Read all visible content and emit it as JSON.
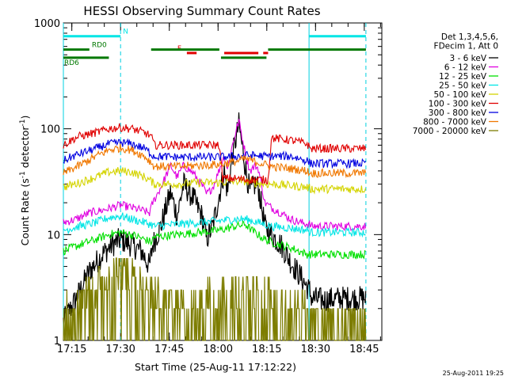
{
  "chart_data": {
    "type": "line",
    "title": "HESSI Observing Summary Count Rates",
    "xlabel": "Start Time (25-Aug-11 17:12:22)",
    "ylabel_main": "Count Rate (s",
    "ylabel_sup1": "-1",
    "ylabel_mid": " detector",
    "ylabel_sup2": "-1",
    "ylabel_end": ")",
    "y_scale": "log",
    "xlim_minutes": [
      0,
      98
    ],
    "ylim": [
      1,
      1000
    ],
    "x_ticks": [
      {
        "t": 2.6,
        "label": "17:15"
      },
      {
        "t": 17.6,
        "label": "17:30"
      },
      {
        "t": 32.6,
        "label": "17:45"
      },
      {
        "t": 47.6,
        "label": "18:00"
      },
      {
        "t": 62.6,
        "label": "18:15"
      },
      {
        "t": 77.6,
        "label": "18:30"
      },
      {
        "t": 92.6,
        "label": "18:45"
      }
    ],
    "y_ticks": [
      {
        "v": 1,
        "label": "1"
      },
      {
        "v": 10,
        "label": "10"
      },
      {
        "v": 100,
        "label": "100"
      },
      {
        "v": 1000,
        "label": "1000"
      }
    ],
    "night_boundaries": [
      0,
      17.6,
      75.6,
      93.1
    ],
    "state_bars": [
      {
        "label": "N",
        "color": "#00e5e5",
        "value": 750,
        "segments": [
          [
            0,
            17.6
          ],
          [
            75.6,
            93.1
          ]
        ]
      },
      {
        "label": "F",
        "color": "#e00000",
        "value": 520,
        "segments": [
          [
            38,
            41
          ],
          [
            49.5,
            60
          ],
          [
            61.5,
            63
          ]
        ]
      },
      {
        "label": "RD0",
        "color": "#007800",
        "value": 560,
        "segments": [
          [
            0,
            8
          ],
          [
            27,
            48
          ],
          [
            63,
            93.1
          ]
        ]
      },
      {
        "label": "RD6",
        "color": "#007800",
        "value": 470,
        "segments": [
          [
            0,
            14
          ],
          [
            48.5,
            62.5
          ]
        ]
      }
    ],
    "legend_header": [
      "Det 1,3,4,5,6,",
      "FDecim 1, Att 0"
    ],
    "series": [
      {
        "name": "3 - 6 keV",
        "color": "#000000",
        "x": [
          0,
          4,
          8,
          12,
          15,
          17.6,
          21,
          24,
          26.5,
          27.5,
          30,
          33,
          35,
          37,
          40,
          43,
          44,
          46,
          49.5,
          50.5,
          52,
          54,
          55.5,
          56.5,
          57.5,
          59,
          60,
          62,
          64,
          67,
          70,
          73,
          75.6,
          76.5,
          80,
          85,
          90,
          93.1
        ],
        "values": [
          1.5,
          2.5,
          4.5,
          6.5,
          8,
          9,
          8,
          7,
          5,
          8,
          12,
          25,
          15,
          30,
          22,
          14,
          9,
          12,
          40,
          25,
          55,
          110,
          55,
          35,
          25,
          30,
          28,
          12,
          10,
          8,
          5.5,
          4,
          3,
          2.5,
          2.4,
          2.5,
          2.5,
          2.5
        ]
      },
      {
        "name": "6 - 12 keV",
        "color": "#e000e0",
        "x": [
          0,
          4,
          8,
          12,
          15,
          17.6,
          21,
          24,
          26.5,
          27.5,
          30,
          33,
          35,
          37,
          40,
          43,
          44,
          46,
          49.5,
          50.5,
          52,
          54,
          55.5,
          56.5,
          57.5,
          59,
          60,
          62,
          64,
          67,
          70,
          73,
          75.6,
          76.5,
          80,
          85,
          90,
          93.1
        ],
        "values": [
          13,
          14,
          16,
          17,
          18,
          19,
          18,
          17,
          16,
          20,
          28,
          45,
          35,
          45,
          38,
          28,
          24,
          28,
          55,
          42,
          70,
          120,
          70,
          50,
          40,
          45,
          42,
          20,
          18,
          16,
          14,
          13,
          12.5,
          12,
          12,
          12,
          12,
          12
        ]
      },
      {
        "name": "12 - 25 keV",
        "color": "#00e000",
        "x": [
          0,
          5,
          10,
          14,
          17.6,
          21,
          25,
          27,
          28,
          35,
          42,
          48,
          53,
          56,
          58,
          62,
          64,
          70,
          75,
          76,
          82,
          88,
          93.1
        ],
        "values": [
          7,
          8,
          9,
          10,
          10.5,
          10,
          9,
          8.5,
          9.5,
          10,
          10.5,
          11,
          12,
          12.5,
          11,
          9,
          8.5,
          7.5,
          6.5,
          6.5,
          6.5,
          6.5,
          6.5
        ]
      },
      {
        "name": "25 - 50 keV",
        "color": "#00e5e5",
        "x": [
          0,
          5,
          10,
          14,
          17.6,
          21,
          25,
          27,
          28,
          35,
          42,
          48,
          53,
          56,
          58,
          62,
          64,
          70,
          75,
          76,
          82,
          88,
          93.1
        ],
        "values": [
          11,
          12,
          13,
          14.5,
          15,
          14,
          13,
          12.5,
          12,
          12.5,
          13,
          13.5,
          14,
          14,
          13.5,
          12.5,
          12,
          11.5,
          11,
          10.5,
          10.5,
          10.5,
          10.5
        ]
      },
      {
        "name": "50 - 100 keV",
        "color": "#d4d400",
        "x": [
          0,
          5,
          10,
          14,
          17.6,
          21,
          25,
          27,
          28,
          35,
          42,
          48,
          53,
          56,
          58,
          62,
          64,
          70,
          75,
          76,
          82,
          88,
          93.1
        ],
        "values": [
          28,
          31,
          35,
          39,
          40,
          39,
          35,
          32,
          30,
          30,
          31,
          31,
          32,
          32,
          31,
          30,
          30,
          29,
          28,
          27,
          27,
          27,
          27
        ]
      },
      {
        "name": "100 - 300 keV",
        "color": "#e00000",
        "x": [
          0,
          3,
          5,
          10,
          14,
          17.6,
          21,
          25,
          27,
          28,
          35,
          42,
          48,
          49,
          52,
          56,
          60,
          62,
          63,
          64,
          70,
          75,
          76,
          82,
          88,
          93.1
        ],
        "values": [
          70,
          80,
          85,
          92,
          100,
          103,
          100,
          92,
          85,
          70,
          70,
          70,
          70,
          34,
          34,
          33,
          33,
          33,
          33,
          82,
          78,
          72,
          65,
          65,
          65,
          65
        ]
      },
      {
        "name": "300 - 800 keV",
        "color": "#0000e0",
        "x": [
          0,
          3,
          5,
          10,
          14,
          17.6,
          21,
          25,
          27,
          28,
          35,
          42,
          48,
          53,
          56,
          58,
          62,
          64,
          70,
          75,
          76,
          82,
          88,
          93.1
        ],
        "values": [
          50,
          55,
          58,
          65,
          72,
          74,
          72,
          65,
          58,
          55,
          54,
          54,
          54,
          55,
          56,
          56,
          55,
          55,
          55,
          50,
          47,
          47,
          47,
          47
        ]
      },
      {
        "name": "800 - 7000 keV",
        "color": "#f07800",
        "x": [
          0,
          5,
          10,
          14,
          17.6,
          21,
          25,
          27,
          28,
          35,
          42,
          48,
          53,
          56,
          58,
          62,
          64,
          70,
          75,
          76,
          82,
          88,
          93.1
        ],
        "values": [
          38,
          45,
          55,
          63,
          66,
          63,
          55,
          48,
          44,
          44,
          45,
          46,
          49,
          52,
          50,
          46,
          44,
          42,
          40,
          38,
          38,
          38,
          38
        ]
      },
      {
        "name": "7000 - 20000 keV",
        "color": "#7d7d00",
        "x": [
          0,
          4,
          8,
          12,
          15,
          17.6,
          21,
          25,
          28,
          32,
          36,
          40,
          44,
          48,
          52,
          56,
          60,
          64,
          68,
          72,
          75.6,
          76,
          82,
          88,
          93.1
        ],
        "values": [
          1.8,
          2.3,
          3,
          3.8,
          4.4,
          4.6,
          4.2,
          3.5,
          3,
          2.5,
          2.5,
          2.6,
          2.8,
          3,
          3.1,
          3.2,
          3,
          2.8,
          2.5,
          2.2,
          2,
          1.8,
          1.8,
          1.8,
          1.8
        ]
      }
    ]
  },
  "timestamp": "25-Aug-2011 19:25"
}
